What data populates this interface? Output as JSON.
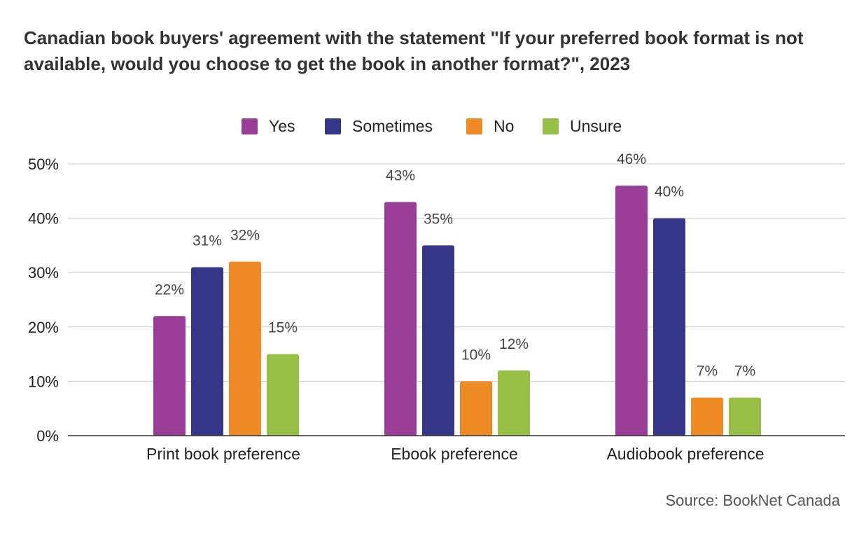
{
  "chart_data": {
    "type": "bar",
    "title": "Canadian book buyers' agreement with the statement \"If your preferred book format is not available, would you choose to get the book in another format?\", 2023",
    "categories": [
      "Print book preference",
      "Ebook preference",
      "Audiobook preference"
    ],
    "series": [
      {
        "name": "Yes",
        "color": "#993d96",
        "values": [
          22,
          43,
          46
        ]
      },
      {
        "name": "Sometimes",
        "color": "#35358a",
        "values": [
          31,
          35,
          40
        ]
      },
      {
        "name": "No",
        "color": "#ee8b24",
        "values": [
          32,
          10,
          7
        ]
      },
      {
        "name": "Unsure",
        "color": "#97bf45",
        "values": [
          15,
          12,
          7
        ]
      }
    ],
    "data_labels": [
      [
        "22%",
        "43%",
        "46%"
      ],
      [
        "31%",
        "35%",
        "40%"
      ],
      [
        "32%",
        "10%",
        "7%"
      ],
      [
        "15%",
        "12%",
        "7%"
      ]
    ],
    "ylim": [
      0,
      50
    ],
    "yticks": [
      0,
      10,
      20,
      30,
      40,
      50
    ],
    "ytick_labels": [
      "0%",
      "10%",
      "20%",
      "30%",
      "40%",
      "50%"
    ],
    "xlabel": "",
    "ylabel": "",
    "grid": true,
    "legend_position": "top-center"
  },
  "source": "Source: BookNet Canada"
}
